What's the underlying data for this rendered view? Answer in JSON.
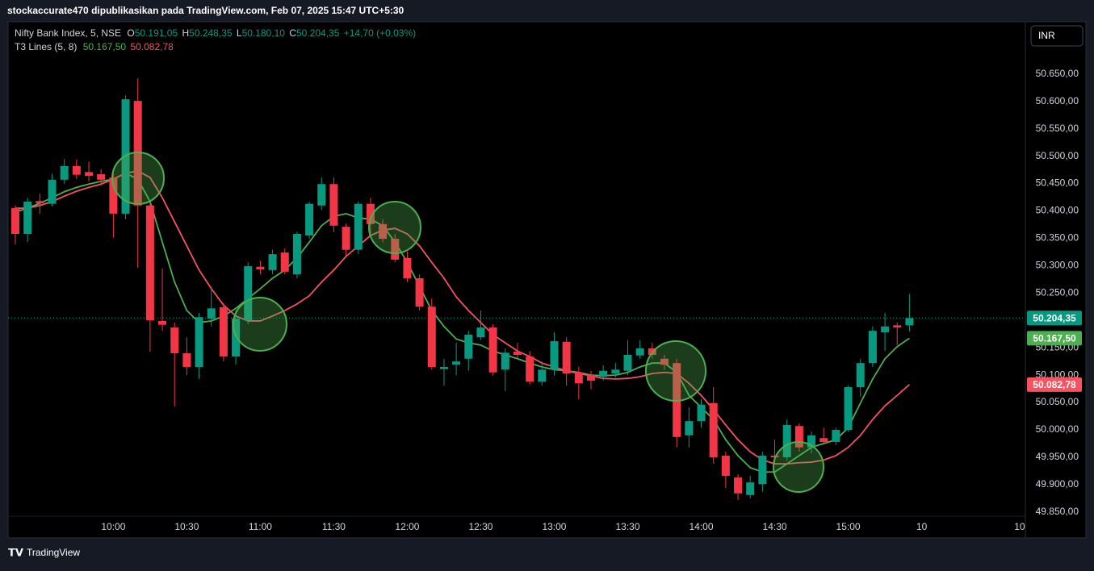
{
  "header": {
    "text": "stockaccurate470 dipublikasikan pada TradingView.com, Feb 07, 2025 15:47 UTC+5:30"
  },
  "currency_button": "INR",
  "footer": {
    "brand": "TradingView"
  },
  "chart_data": {
    "type": "candlestick",
    "categories": [
      null,
      null,
      null,
      null,
      null,
      null,
      null,
      null,
      "10:00",
      null,
      null,
      null,
      null,
      null,
      "10:30",
      null,
      null,
      null,
      null,
      null,
      "11:00",
      null,
      null,
      null,
      null,
      null,
      "11:30",
      null,
      null,
      null,
      null,
      null,
      "12:00",
      null,
      null,
      null,
      null,
      null,
      "12:30",
      null,
      null,
      null,
      null,
      null,
      "13:00",
      null,
      null,
      null,
      null,
      null,
      "13:30",
      null,
      null,
      null,
      null,
      null,
      "14:00",
      null,
      null,
      null,
      null,
      null,
      "14:30",
      null,
      null,
      null,
      null,
      null,
      "15:00",
      null,
      null,
      null,
      null,
      null,
      "10",
      null,
      null,
      null,
      null,
      null,
      null,
      null,
      "10"
    ],
    "ylim": [
      49802.6,
      50745.5
    ],
    "yticks": [
      {
        "value": 49850,
        "label": "49.850,00"
      },
      {
        "value": 49900,
        "label": "49.900,00"
      },
      {
        "value": 49950,
        "label": "49.950,00"
      },
      {
        "value": 50000,
        "label": "50.000,00"
      },
      {
        "value": 50050,
        "label": "50.050,00"
      },
      {
        "value": 50100,
        "label": "50.100,00"
      },
      {
        "value": 50150,
        "label": "50.150,00"
      },
      {
        "value": 50200,
        "label": "50.200,00"
      },
      {
        "value": 50250,
        "label": "50.250,00"
      },
      {
        "value": 50300,
        "label": "50.300,00"
      },
      {
        "value": 50350,
        "label": "50.350,00"
      },
      {
        "value": 50400,
        "label": "50.400,00"
      },
      {
        "value": 50450,
        "label": "50.450,00"
      },
      {
        "value": 50500,
        "label": "50.500,00"
      },
      {
        "value": 50550,
        "label": "50.550,00"
      },
      {
        "value": 50600,
        "label": "50.600,00"
      },
      {
        "value": 50650,
        "label": "50.650,00"
      }
    ],
    "grid": false,
    "series": [
      {
        "name": "Nifty Bank Index, 5, NSE",
        "up_color": "#089981",
        "down_color": "#f23645",
        "open": [
          50405,
          50358,
          50418,
          50413,
          50457,
          50482,
          50471,
          50467,
          50461,
          50395,
          50601,
          50410,
          50199,
          50187,
          50140,
          50115,
          50203,
          50224,
          50134,
          50200,
          50298,
          50292,
          50324,
          50284,
          50355,
          50410,
          50449,
          50371,
          50329,
          50413,
          50376,
          50349,
          50314,
          50277,
          50225,
          50111,
          50119,
          50130,
          50169,
          50187,
          50110,
          50143,
          50134,
          50088,
          50110,
          50161,
          50105,
          50100,
          50097,
          50103,
          50108,
          50136,
          50149,
          50130,
          50122,
          49990,
          50016,
          50049,
          49953,
          49913,
          49881,
          49901,
          49953,
          49950,
          50007,
          49968,
          49985,
          49978,
          50000,
          50078,
          50122,
          50178,
          50191,
          50191.05,
          null,
          null,
          null,
          null,
          null,
          null,
          null,
          null,
          null
        ],
        "high": [
          50410,
          50424,
          50432,
          50468,
          50495,
          50494,
          50490,
          50476,
          50471,
          50611,
          50642,
          50417,
          50295,
          50196,
          50169,
          50214,
          50262,
          50231,
          50218,
          50306,
          50309,
          50329,
          50331,
          50362,
          50417,
          50461,
          50461,
          50377,
          50417,
          50424,
          50385,
          50358,
          50326,
          50284,
          50240,
          50130,
          50159,
          50181,
          50218,
          50193,
          50149,
          50159,
          50144,
          50125,
          50178,
          50169,
          50115,
          50108,
          50118,
          50122,
          50164,
          50164,
          50159,
          50137,
          50130,
          50041,
          50056,
          50078,
          49960,
          49919,
          49916,
          49960,
          49982,
          50019,
          50012,
          49997,
          50004,
          50004,
          50081,
          50130,
          50189,
          50214,
          50196,
          50248.35,
          null,
          null,
          null,
          null,
          null,
          null,
          null,
          null,
          null
        ],
        "low": [
          50339,
          50343,
          50395,
          50408,
          50449,
          50458,
          50454,
          50446,
          50351,
          50385,
          50296,
          50143,
          50181,
          50043,
          50100,
          50093,
          50189,
          50125,
          50119,
          50193,
          50284,
          50284,
          50284,
          50277,
          50349,
          50402,
          50361,
          50317,
          50321,
          50358,
          50343,
          50306,
          50270,
          50218,
          50110,
          50081,
          50100,
          50108,
          50164,
          50099,
          50071,
          50130,
          50083,
          50081,
          50100,
          50081,
          50056,
          50074,
          50090,
          50096,
          50100,
          50130,
          50130,
          50110,
          49968,
          49968,
          50004,
          49938,
          49894,
          49872,
          49875,
          49887,
          49938,
          49943,
          49960,
          49957,
          49975,
          49972,
          49997,
          50060,
          50115,
          50144,
          50155,
          50180.1,
          null,
          null,
          null,
          null,
          null,
          null,
          null,
          null,
          null
        ],
        "close": [
          50358,
          50417,
          50414,
          50457,
          50482,
          50466,
          50464,
          50457,
          50395,
          50604,
          50410,
          50200,
          50192,
          50140,
          50115,
          50206,
          50222,
          50134,
          50203,
          50299,
          50293,
          50321,
          50289,
          50358,
          50413,
          50449,
          50373,
          50329,
          50413,
          50376,
          50349,
          50311,
          50277,
          50225,
          50115,
          50115,
          50125,
          50174,
          50187,
          50105,
          50141,
          50137,
          50088,
          50110,
          50162,
          50103,
          50085,
          50090,
          50108,
          50110,
          50137,
          50149,
          50137,
          50119,
          49987,
          50016,
          50046,
          49950,
          49916,
          49884,
          49904,
          49953,
          49950,
          50009,
          49968,
          49990,
          49978,
          50000,
          50078,
          50122,
          50181,
          50189,
          50187,
          50204.35,
          null,
          null,
          null,
          null,
          null,
          null,
          null,
          null,
          null
        ],
        "legend": [
          {
            "key": "O",
            "value": "50.191,05"
          },
          {
            "key": "H",
            "value": "50.248,35"
          },
          {
            "key": "L",
            "value": "50.180,10"
          },
          {
            "key": "C",
            "value": "50.204,35"
          }
        ],
        "change": "+14,70 (+0,03%)",
        "last_label": "50.204,35",
        "last_color": "#089981"
      }
    ],
    "indicator": {
      "name": "T3 Lines (5, 8)",
      "lines": [
        {
          "color": "#4caf50",
          "last_label": "50.167,50",
          "values": [
            50398,
            50405,
            50414,
            50424,
            50435,
            50443,
            50449,
            50454,
            50458,
            50469,
            50458,
            50417,
            50343,
            50270,
            50218,
            50196,
            50199,
            50208,
            50222,
            50240,
            50258,
            50277,
            50292,
            50314,
            50343,
            50373,
            50390,
            50395,
            50387,
            50385,
            50373,
            50343,
            50306,
            50262,
            50218,
            50189,
            50166,
            50159,
            50155,
            50144,
            50137,
            50130,
            50122,
            50115,
            50110,
            50108,
            50105,
            50100,
            50099,
            50100,
            50105,
            50115,
            50122,
            50122,
            50105,
            50063,
            50041,
            50019,
            49982,
            49953,
            49931,
            49923,
            49923,
            49938,
            49953,
            49968,
            49975,
            49982,
            50004,
            50049,
            50093,
            50130,
            50152,
            50167.5,
            null,
            null,
            null,
            null,
            null,
            null,
            null,
            null,
            null
          ]
        },
        {
          "color": "#f7525f",
          "last_label": "50.082,78",
          "values": [
            50405,
            50405,
            50410,
            50417,
            50427,
            50436,
            50443,
            50449,
            50458,
            50469,
            50473,
            50461,
            50424,
            50380,
            50336,
            50292,
            50258,
            50228,
            50208,
            50199,
            50199,
            50208,
            50218,
            50230,
            50245,
            50270,
            50292,
            50317,
            50336,
            50355,
            50365,
            50368,
            50358,
            50336,
            50306,
            50277,
            50243,
            50218,
            50196,
            50174,
            50159,
            50144,
            50134,
            50122,
            50115,
            50108,
            50103,
            50099,
            50094,
            50093,
            50094,
            50097,
            50103,
            50105,
            50103,
            50085,
            50063,
            50037,
            50009,
            49982,
            49960,
            49945,
            49938,
            49938,
            49940,
            49941,
            49945,
            49953,
            49968,
            49990,
            50019,
            50044,
            50063,
            50082.78,
            null,
            null,
            null,
            null,
            null,
            null,
            null,
            null,
            null
          ]
        }
      ]
    }
  }
}
